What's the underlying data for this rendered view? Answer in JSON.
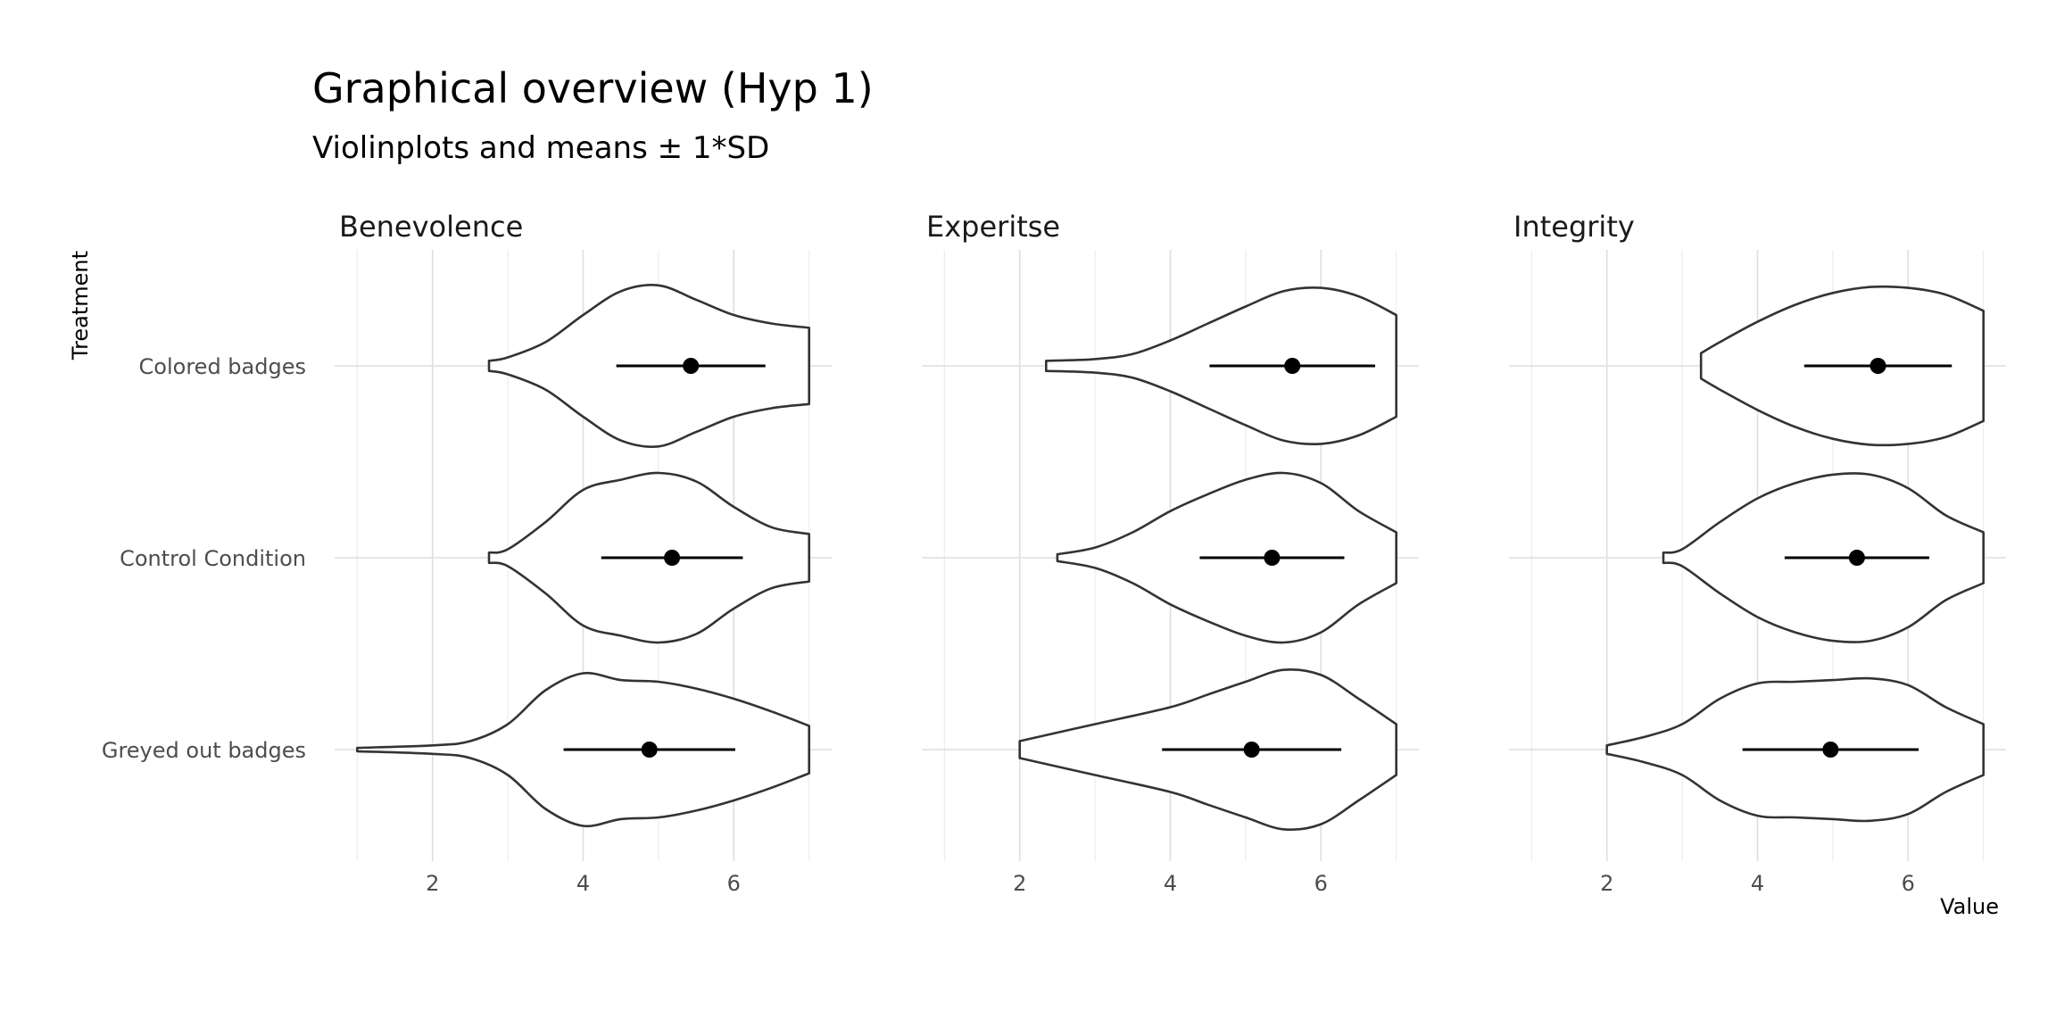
{
  "chart_data": {
    "type": "violin",
    "title": "Graphical overview (Hyp 1)",
    "subtitle": "Violinplots and means ± 1*SD",
    "xlabel": "Value",
    "ylabel": "Treatment",
    "xlim": [
      0.7,
      7.3
    ],
    "x_ticks": [
      2,
      4,
      6
    ],
    "categories": [
      "Colored badges",
      "Control Condition",
      "Greyed out badges"
    ],
    "grid": true,
    "legend": "none",
    "panels": [
      {
        "name": "Benevolence",
        "groups": [
          {
            "category": "Colored badges",
            "mean": 5.43,
            "sd": 0.99,
            "density": [
              [
                2.75,
                0.06
              ],
              [
                3.0,
                0.1
              ],
              [
                3.5,
                0.28
              ],
              [
                4.0,
                0.6
              ],
              [
                4.5,
                0.88
              ],
              [
                5.0,
                0.95
              ],
              [
                5.5,
                0.78
              ],
              [
                6.0,
                0.6
              ],
              [
                6.5,
                0.5
              ],
              [
                7.0,
                0.45
              ]
            ]
          },
          {
            "category": "Control Condition",
            "mean": 5.18,
            "sd": 0.94,
            "density": [
              [
                2.75,
                0.06
              ],
              [
                3.0,
                0.1
              ],
              [
                3.5,
                0.42
              ],
              [
                4.0,
                0.8
              ],
              [
                4.5,
                0.92
              ],
              [
                5.0,
                1.0
              ],
              [
                5.5,
                0.9
              ],
              [
                6.0,
                0.6
              ],
              [
                6.5,
                0.36
              ],
              [
                7.0,
                0.28
              ]
            ]
          },
          {
            "category": "Greyed out badges",
            "mean": 4.88,
            "sd": 1.14,
            "density": [
              [
                1.0,
                0.02
              ],
              [
                2.0,
                0.05
              ],
              [
                2.5,
                0.1
              ],
              [
                3.0,
                0.3
              ],
              [
                3.5,
                0.7
              ],
              [
                4.0,
                0.9
              ],
              [
                4.5,
                0.82
              ],
              [
                5.0,
                0.8
              ],
              [
                5.5,
                0.72
              ],
              [
                6.0,
                0.6
              ],
              [
                6.5,
                0.45
              ],
              [
                7.0,
                0.28
              ]
            ]
          }
        ]
      },
      {
        "name": "Experitse",
        "groups": [
          {
            "category": "Colored badges",
            "mean": 5.62,
            "sd": 1.1,
            "density": [
              [
                2.35,
                0.06
              ],
              [
                3.0,
                0.08
              ],
              [
                3.5,
                0.14
              ],
              [
                4.0,
                0.3
              ],
              [
                4.5,
                0.5
              ],
              [
                5.0,
                0.7
              ],
              [
                5.5,
                0.88
              ],
              [
                6.0,
                0.92
              ],
              [
                6.5,
                0.82
              ],
              [
                7.0,
                0.6
              ]
            ]
          },
          {
            "category": "Control Condition",
            "mean": 5.35,
            "sd": 0.96,
            "density": [
              [
                2.5,
                0.04
              ],
              [
                3.0,
                0.12
              ],
              [
                3.5,
                0.3
              ],
              [
                4.0,
                0.55
              ],
              [
                4.5,
                0.75
              ],
              [
                5.0,
                0.92
              ],
              [
                5.5,
                1.0
              ],
              [
                6.0,
                0.88
              ],
              [
                6.5,
                0.55
              ],
              [
                7.0,
                0.3
              ]
            ]
          },
          {
            "category": "Greyed out badges",
            "mean": 5.08,
            "sd": 1.19,
            "density": [
              [
                2.0,
                0.1
              ],
              [
                3.0,
                0.3
              ],
              [
                4.0,
                0.5
              ],
              [
                4.5,
                0.65
              ],
              [
                5.0,
                0.8
              ],
              [
                5.5,
                0.94
              ],
              [
                6.0,
                0.88
              ],
              [
                6.5,
                0.6
              ],
              [
                7.0,
                0.3
              ]
            ]
          }
        ]
      },
      {
        "name": "Integrity",
        "groups": [
          {
            "category": "Colored badges",
            "mean": 5.6,
            "sd": 0.98,
            "density": [
              [
                3.25,
                0.15
              ],
              [
                3.5,
                0.28
              ],
              [
                4.0,
                0.52
              ],
              [
                4.5,
                0.72
              ],
              [
                5.0,
                0.86
              ],
              [
                5.5,
                0.93
              ],
              [
                6.0,
                0.92
              ],
              [
                6.5,
                0.84
              ],
              [
                7.0,
                0.65
              ]
            ]
          },
          {
            "category": "Control Condition",
            "mean": 5.32,
            "sd": 0.96,
            "density": [
              [
                2.75,
                0.06
              ],
              [
                3.0,
                0.1
              ],
              [
                3.5,
                0.42
              ],
              [
                4.0,
                0.7
              ],
              [
                4.5,
                0.88
              ],
              [
                5.0,
                0.98
              ],
              [
                5.5,
                0.98
              ],
              [
                6.0,
                0.82
              ],
              [
                6.5,
                0.5
              ],
              [
                7.0,
                0.3
              ]
            ]
          },
          {
            "category": "Greyed out badges",
            "mean": 4.97,
            "sd": 1.17,
            "density": [
              [
                2.0,
                0.05
              ],
              [
                2.5,
                0.15
              ],
              [
                3.0,
                0.3
              ],
              [
                3.5,
                0.6
              ],
              [
                4.0,
                0.78
              ],
              [
                4.5,
                0.8
              ],
              [
                5.0,
                0.82
              ],
              [
                5.5,
                0.84
              ],
              [
                6.0,
                0.76
              ],
              [
                6.5,
                0.5
              ],
              [
                7.0,
                0.3
              ]
            ]
          }
        ]
      }
    ]
  }
}
